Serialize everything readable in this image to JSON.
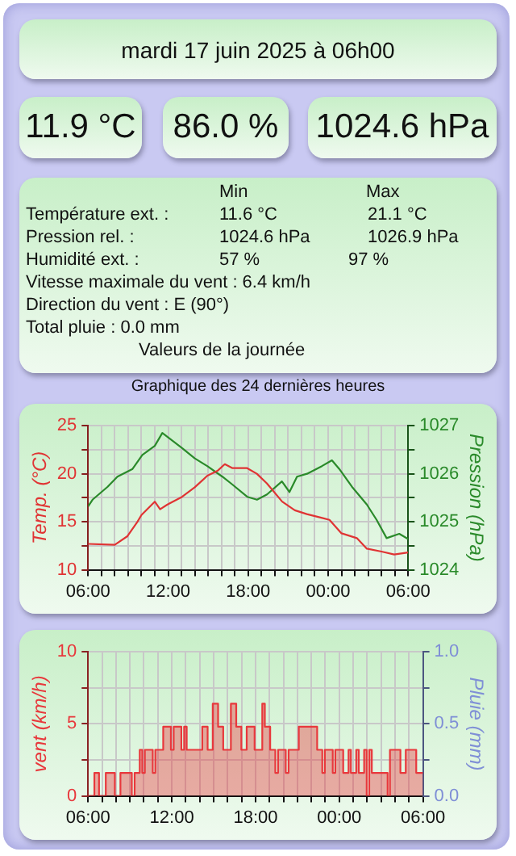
{
  "chart_data": [
    {
      "type": "other",
      "title": "mardi 17 juin 2025 à 06h00",
      "annotations": [
        "11.9 °C",
        "86.0 %",
        "1024.6 hPa",
        "Min",
        "Max",
        "Température ext. :",
        "11.6 °C",
        "21.1 °C",
        "Pression rel. :",
        "1024.6 hPa",
        "1026.9 hPa",
        "Humidité ext. :",
        "57 %",
        "97 %",
        "Vitesse maximale du vent : 6.4 km/h",
        "Direction du vent : E (90°)",
        "Total pluie : 0.0 mm",
        "Valeurs de la journée"
      ]
    },
    {
      "type": "line",
      "title": "Graphique des 24 dernières heures",
      "ylabel": "Temp. (°C)",
      "y2label": "Pression (hPa)",
      "xlim": [
        "2025-06-16T06:00",
        "2025-06-17T06:00"
      ],
      "xticks": [
        {
          "value": "2025-06-16T06:00",
          "label": "06:00"
        },
        {
          "value": "2025-06-16T07:00",
          "label": null
        },
        {
          "value": "2025-06-16T08:00",
          "label": null
        },
        {
          "value": "2025-06-16T09:00",
          "label": null
        },
        {
          "value": "2025-06-16T10:00",
          "label": null
        },
        {
          "value": "2025-06-16T11:00",
          "label": null
        },
        {
          "value": "2025-06-16T12:00",
          "label": "12:00"
        },
        {
          "value": "2025-06-16T13:00",
          "label": null
        },
        {
          "value": "2025-06-16T14:00",
          "label": null
        },
        {
          "value": "2025-06-16T15:00",
          "label": null
        },
        {
          "value": "2025-06-16T16:00",
          "label": null
        },
        {
          "value": "2025-06-16T17:00",
          "label": null
        },
        {
          "value": "2025-06-16T18:00",
          "label": "18:00"
        },
        {
          "value": "2025-06-16T19:00",
          "label": null
        },
        {
          "value": "2025-06-16T20:00",
          "label": null
        },
        {
          "value": "2025-06-16T21:00",
          "label": null
        },
        {
          "value": "2025-06-16T22:00",
          "label": null
        },
        {
          "value": "2025-06-16T23:00",
          "label": null
        },
        {
          "value": "2025-06-17T00:00",
          "label": "00:00"
        },
        {
          "value": "2025-06-17T01:00",
          "label": null
        },
        {
          "value": "2025-06-17T02:00",
          "label": null
        },
        {
          "value": "2025-06-17T03:00",
          "label": null
        },
        {
          "value": "2025-06-17T04:00",
          "label": null
        },
        {
          "value": "2025-06-17T05:00",
          "label": null
        },
        {
          "value": "2025-06-17T06:00",
          "label": "06:00"
        }
      ],
      "ylim": [
        10,
        25
      ],
      "yticks": [
        10,
        {
          "value": 12.5,
          "label": null
        },
        15,
        {
          "value": 17.5,
          "label": null
        },
        20,
        {
          "value": 22.5,
          "label": null
        },
        25
      ],
      "y2lim": [
        1024,
        1027
      ],
      "y2ticks": [
        1024,
        {
          "value": 1024.5,
          "label": null
        },
        1025,
        {
          "value": 1025.5,
          "label": null
        },
        1026,
        {
          "value": 1026.5,
          "label": null
        },
        1027
      ],
      "grid": true,
      "marker": "none",
      "line_style": "solid",
      "series": [
        {
          "color": "#e03434",
          "x": [
            "2025-06-16T06:00",
            "2025-06-16T08:00",
            "2025-06-16T08:57",
            "2025-06-16T09:42",
            "2025-06-16T10:00",
            "2025-06-16T11:00",
            "2025-06-16T11:24",
            "2025-06-16T11:57",
            "2025-06-16T13:03",
            "2025-06-16T14:00",
            "2025-06-16T14:57",
            "2025-06-16T15:42",
            "2025-06-16T16:15",
            "2025-06-16T16:48",
            "2025-06-16T17:54",
            "2025-06-16T18:39",
            "2025-06-16T19:24",
            "2025-06-16T20:33",
            "2025-06-16T21:30",
            "2025-06-16T22:24",
            "2025-06-16T23:33",
            "2025-06-17T00:06",
            "2025-06-17T01:00",
            "2025-06-17T02:09",
            "2025-06-17T02:54",
            "2025-06-17T04:00",
            "2025-06-17T04:57",
            "2025-06-17T06:00"
          ],
          "values": [
            12.7,
            12.6,
            13.5,
            15.0,
            15.7,
            17.1,
            16.3,
            16.8,
            17.6,
            18.6,
            19.8,
            20.3,
            21.0,
            20.6,
            20.6,
            20.0,
            19.0,
            17.1,
            16.2,
            15.8,
            15.4,
            15.2,
            13.8,
            13.3,
            12.2,
            11.9,
            11.6,
            11.8
          ]
        },
        {
          "color": "#2a8a2a",
          "axis": "y2",
          "x": [
            "2025-06-16T06:00",
            "2025-06-16T06:20",
            "2025-06-16T07:28",
            "2025-06-16T08:12",
            "2025-06-16T09:20",
            "2025-06-16T10:04",
            "2025-06-16T11:00",
            "2025-06-16T11:34",
            "2025-06-16T12:19",
            "2025-06-16T13:04",
            "2025-06-16T14:00",
            "2025-06-16T14:56",
            "2025-06-16T16:04",
            "2025-06-16T16:48",
            "2025-06-16T17:56",
            "2025-06-16T18:40",
            "2025-06-16T19:25",
            "2025-06-16T20:32",
            "2025-06-16T21:06",
            "2025-06-16T21:40",
            "2025-06-16T22:25",
            "2025-06-16T23:32",
            "2025-06-17T00:17",
            "2025-06-17T00:50",
            "2025-06-17T01:47",
            "2025-06-17T02:54",
            "2025-06-17T03:38",
            "2025-06-17T04:23",
            "2025-06-17T05:20",
            "2025-06-17T06:00"
          ],
          "values": [
            1025.32,
            1025.46,
            1025.73,
            1025.94,
            1026.1,
            1026.39,
            1026.58,
            1026.85,
            1026.69,
            1026.53,
            1026.32,
            1026.16,
            1025.94,
            1025.78,
            1025.52,
            1025.46,
            1025.57,
            1025.84,
            1025.62,
            1025.94,
            1026.0,
            1026.16,
            1026.28,
            1026.1,
            1025.73,
            1025.36,
            1025.04,
            1024.66,
            1024.75,
            1024.64
          ]
        }
      ]
    },
    {
      "type": "step",
      "ylabel": "vent (km/h)",
      "y2label": "Pluie (mm)",
      "xlim": [
        "2025-06-16T06:00",
        "2025-06-17T06:00"
      ],
      "xticks": [
        {
          "value": "2025-06-16T06:00",
          "label": "06:00"
        },
        {
          "value": "2025-06-16T07:00",
          "label": null
        },
        {
          "value": "2025-06-16T08:00",
          "label": null
        },
        {
          "value": "2025-06-16T09:00",
          "label": null
        },
        {
          "value": "2025-06-16T10:00",
          "label": null
        },
        {
          "value": "2025-06-16T11:00",
          "label": null
        },
        {
          "value": "2025-06-16T12:00",
          "label": "12:00"
        },
        {
          "value": "2025-06-16T13:00",
          "label": null
        },
        {
          "value": "2025-06-16T14:00",
          "label": null
        },
        {
          "value": "2025-06-16T15:00",
          "label": null
        },
        {
          "value": "2025-06-16T16:00",
          "label": null
        },
        {
          "value": "2025-06-16T17:00",
          "label": null
        },
        {
          "value": "2025-06-16T18:00",
          "label": "18:00"
        },
        {
          "value": "2025-06-16T19:00",
          "label": null
        },
        {
          "value": "2025-06-16T20:00",
          "label": null
        },
        {
          "value": "2025-06-16T21:00",
          "label": null
        },
        {
          "value": "2025-06-16T22:00",
          "label": null
        },
        {
          "value": "2025-06-16T23:00",
          "label": null
        },
        {
          "value": "2025-06-17T00:00",
          "label": "00:00"
        },
        {
          "value": "2025-06-17T01:00",
          "label": null
        },
        {
          "value": "2025-06-17T02:00",
          "label": null
        },
        {
          "value": "2025-06-17T03:00",
          "label": null
        },
        {
          "value": "2025-06-17T04:00",
          "label": null
        },
        {
          "value": "2025-06-17T05:00",
          "label": null
        },
        {
          "value": "2025-06-17T06:00",
          "label": "06:00"
        }
      ],
      "ylim": [
        0,
        10
      ],
      "yticks": [
        0,
        {
          "value": 2.5,
          "label": null
        },
        5,
        {
          "value": 7.5,
          "label": null
        },
        10
      ],
      "y2lim": [
        0,
        1
      ],
      "y2ticks": [
        {
          "value": 0,
          "label": "0.0"
        },
        {
          "value": 0.25,
          "label": null
        },
        {
          "value": 0.5,
          "label": "0.5"
        },
        {
          "value": 0.75,
          "label": null
        },
        {
          "value": 1,
          "label": "1.0"
        }
      ],
      "grid": true,
      "marker": "none",
      "line_style": "solid",
      "series": [
        {
          "color": "#e8383c",
          "x": [
            "2025-06-16T06:00",
            "2025-06-16T06:27",
            "2025-06-16T06:47",
            "2025-06-16T07:16",
            "2025-06-16T07:55",
            "2025-06-16T08:19",
            "2025-06-16T09:08",
            "2025-06-16T09:20",
            "2025-06-16T09:42",
            "2025-06-16T09:53",
            "2025-06-16T10:04",
            "2025-06-16T10:38",
            "2025-06-16T10:49",
            "2025-06-16T11:23",
            "2025-06-16T11:56",
            "2025-06-16T12:08",
            "2025-06-16T12:41",
            "2025-06-16T12:53",
            "2025-06-16T13:04",
            "2025-06-16T14:11",
            "2025-06-16T14:34",
            "2025-06-16T14:56",
            "2025-06-16T15:19",
            "2025-06-16T15:41",
            "2025-06-16T16:14",
            "2025-06-16T16:37",
            "2025-06-16T16:59",
            "2025-06-16T17:22",
            "2025-06-16T17:56",
            "2025-06-16T18:29",
            "2025-06-16T18:40",
            "2025-06-16T19:03",
            "2025-06-16T19:25",
            "2025-06-16T19:37",
            "2025-06-16T20:10",
            "2025-06-16T20:22",
            "2025-06-16T21:06",
            "2025-06-16T22:25",
            "2025-06-16T22:47",
            "2025-06-16T22:58",
            "2025-06-16T23:32",
            "2025-06-16T23:43",
            "2025-06-17T00:17",
            "2025-06-17T00:40",
            "2025-06-17T00:50",
            "2025-06-17T01:13",
            "2025-06-17T01:24",
            "2025-06-17T01:47",
            "2025-06-17T01:58",
            "2025-06-17T02:09",
            "2025-06-17T02:20",
            "2025-06-17T03:28",
            "2025-06-17T03:38",
            "2025-06-17T04:23",
            "2025-06-17T04:46",
            "2025-06-17T05:31",
            "2025-06-17T06:00"
          ],
          "values": [
            0,
            1.6,
            0,
            1.6,
            0,
            1.6,
            0,
            1.6,
            3.2,
            1.6,
            3.2,
            1.6,
            3.2,
            4.8,
            3.2,
            4.8,
            3.2,
            4.8,
            3.2,
            4.8,
            3.2,
            6.4,
            4.8,
            3.2,
            6.4,
            4.8,
            3.2,
            4.8,
            3.2,
            6.4,
            4.8,
            3.2,
            1.6,
            3.2,
            1.6,
            3.2,
            4.8,
            3.2,
            1.6,
            3.2,
            1.6,
            3.2,
            1.6,
            3.2,
            1.6,
            3.2,
            1.6,
            3.2,
            0,
            3.2,
            1.6,
            0,
            3.2,
            1.6,
            3.2,
            1.6,
            1.6
          ]
        }
      ]
    }
  ]
}
